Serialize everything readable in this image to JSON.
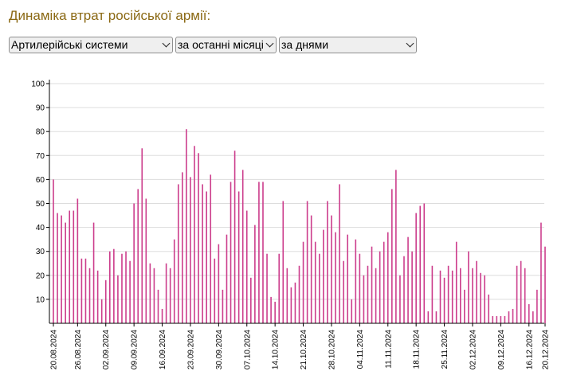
{
  "header": {
    "title": "Динаміка втрат російської армії:"
  },
  "controls": {
    "category": "Артилерійські системи",
    "period": "за останні місяці",
    "grouping": "за днями"
  },
  "colors": {
    "bar": "#cc3d8c",
    "grid": "#dddddd",
    "axis": "#000000"
  },
  "icons": [
    "chevron-down-icon"
  ],
  "chart_data": {
    "type": "bar",
    "ylim": [
      0,
      100
    ],
    "yticks": [
      10,
      20,
      30,
      40,
      50,
      60,
      70,
      80,
      90,
      100
    ],
    "grid": true,
    "x_start": "20.08.2024",
    "x_end": "20.12.2024",
    "xtick_labels": [
      "20.08.2024",
      "26.08.2024",
      "02.09.2024",
      "09.09.2024",
      "16.09.2024",
      "23.09.2024",
      "30.09.2024",
      "07.10.2024",
      "14.10.2024",
      "21.10.2024",
      "28.10.2024",
      "04.11.2024",
      "11.11.2024",
      "18.11.2024",
      "25.11.2024",
      "02.12.2024",
      "09.12.2024",
      "16.12.2024",
      "20.12.2024"
    ],
    "values": [
      60,
      46,
      45,
      42,
      47,
      47,
      52,
      27,
      27,
      23,
      42,
      22,
      10,
      18,
      30,
      31,
      20,
      29,
      30,
      26,
      50,
      56,
      73,
      52,
      25,
      23,
      14,
      6,
      25,
      23,
      35,
      58,
      63,
      81,
      61,
      74,
      71,
      58,
      55,
      62,
      27,
      33,
      14,
      37,
      59,
      72,
      55,
      64,
      47,
      19,
      41,
      59,
      59,
      29,
      11,
      9,
      29,
      51,
      23,
      15,
      17,
      24,
      34,
      51,
      45,
      34,
      29,
      39,
      51,
      45,
      38,
      58,
      26,
      37,
      10,
      35,
      29,
      20,
      24,
      32,
      23,
      30,
      34,
      38,
      56,
      64,
      20,
      28,
      36,
      30,
      46,
      49,
      50,
      5,
      24,
      5,
      22,
      19,
      24,
      22,
      34,
      23,
      14,
      30,
      23,
      26,
      21,
      20,
      12,
      3,
      3,
      3,
      3,
      5,
      6,
      24,
      26,
      23,
      8,
      5,
      14,
      42,
      32
    ]
  }
}
